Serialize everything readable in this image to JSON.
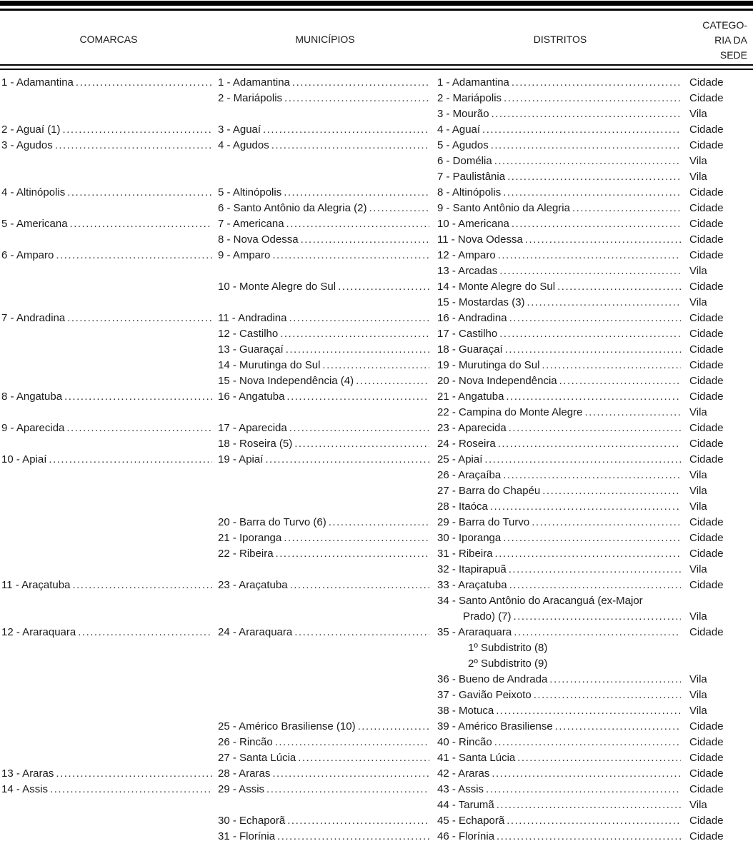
{
  "page": {
    "background_color": "#ffffff",
    "text_color": "#1a1a1a",
    "rule_color": "#000000"
  },
  "table": {
    "headers": {
      "comarcas": "COMARCAS",
      "municipios": "MUNICÍPIOS",
      "distritos": "DISTRITOS",
      "categoria_line1": "CATEGO-",
      "categoria_line2": "RIA DA",
      "categoria_line3": "SEDE"
    },
    "rows": [
      {
        "comarca": "1 - Adamantina",
        "municipio": "1 - Adamantina",
        "distrito": "1 - Adamantina",
        "categoria": "Cidade"
      },
      {
        "comarca": "",
        "municipio": "2 - Mariápolis",
        "distrito": "2 - Mariápolis",
        "categoria": "Cidade"
      },
      {
        "comarca": "",
        "municipio": "",
        "distrito": "3 - Mourão",
        "categoria": "Vila"
      },
      {
        "comarca": "2 - Aguaí (1)",
        "municipio": "3 - Aguaí",
        "distrito": "4 - Aguaí",
        "categoria": "Cidade"
      },
      {
        "comarca": "3 - Agudos",
        "municipio": "4 - Agudos",
        "distrito": "5 - Agudos",
        "categoria": "Cidade"
      },
      {
        "comarca": "",
        "municipio": "",
        "distrito": "6 - Domélia",
        "categoria": "Vila"
      },
      {
        "comarca": "",
        "municipio": "",
        "distrito": "7 - Paulistânia",
        "categoria": "Vila"
      },
      {
        "comarca": "4 - Altinópolis",
        "municipio": "5 - Altinópolis",
        "distrito": "8 - Altinópolis",
        "categoria": "Cidade"
      },
      {
        "comarca": "",
        "municipio": "6 - Santo Antônio da Alegria (2)",
        "distrito": "9 - Santo Antônio da Alegria",
        "categoria": "Cidade"
      },
      {
        "comarca": "5 - Americana",
        "municipio": "7 - Americana",
        "distrito": "10 - Americana",
        "categoria": "Cidade"
      },
      {
        "comarca": "",
        "municipio": "8 - Nova Odessa",
        "distrito": "11 - Nova Odessa",
        "categoria": "Cidade"
      },
      {
        "comarca": "6 - Amparo",
        "municipio": "9 - Amparo",
        "distrito": "12 - Amparo",
        "categoria": "Cidade"
      },
      {
        "comarca": "",
        "municipio": "",
        "distrito": "13 - Arcadas",
        "categoria": "Vila"
      },
      {
        "comarca": "",
        "municipio": "10 - Monte Alegre do Sul",
        "distrito": "14 - Monte Alegre do Sul",
        "categoria": "Cidade"
      },
      {
        "comarca": "",
        "municipio": "",
        "distrito": "15 - Mostardas (3)",
        "categoria": "Vila"
      },
      {
        "comarca": "7 - Andradina",
        "municipio": "11 - Andradina",
        "distrito": "16 - Andradina",
        "categoria": "Cidade"
      },
      {
        "comarca": "",
        "municipio": "12 - Castilho",
        "distrito": "17 - Castilho",
        "categoria": "Cidade"
      },
      {
        "comarca": "",
        "municipio": "13 - Guaraçaí",
        "distrito": "18 - Guaraçaí",
        "categoria": "Cidade"
      },
      {
        "comarca": "",
        "municipio": "14 - Murutinga do Sul",
        "distrito": "19 - Murutinga do Sul",
        "categoria": "Cidade"
      },
      {
        "comarca": "",
        "municipio": "15 - Nova Independência (4)",
        "distrito": "20 - Nova Independência",
        "categoria": "Cidade"
      },
      {
        "comarca": "8 - Angatuba",
        "municipio": "16 - Angatuba",
        "distrito": "21 - Angatuba",
        "categoria": "Cidade"
      },
      {
        "comarca": "",
        "municipio": "",
        "distrito": "22 - Campina do Monte Alegre",
        "categoria": "Vila"
      },
      {
        "comarca": "9 - Aparecida",
        "municipio": "17 - Aparecida",
        "distrito": "23 - Aparecida",
        "categoria": "Cidade"
      },
      {
        "comarca": "",
        "municipio": "18 - Roseira (5)",
        "distrito": "24 - Roseira",
        "categoria": "Cidade"
      },
      {
        "comarca": "10 - Apiaí",
        "municipio": "19 - Apiaí",
        "distrito": "25 - Apiaí",
        "categoria": "Cidade"
      },
      {
        "comarca": "",
        "municipio": "",
        "distrito": "26 - Araçaíba",
        "categoria": "Vila"
      },
      {
        "comarca": "",
        "municipio": "",
        "distrito": "27 - Barra do Chapéu",
        "categoria": "Vila"
      },
      {
        "comarca": "",
        "municipio": "",
        "distrito": "28 - Itaóca",
        "categoria": "Vila"
      },
      {
        "comarca": "",
        "municipio": "20 - Barra do Turvo (6)",
        "distrito": "29 - Barra do Turvo",
        "categoria": "Cidade"
      },
      {
        "comarca": "",
        "municipio": "21 - Iporanga",
        "distrito": "30 - Iporanga",
        "categoria": "Cidade"
      },
      {
        "comarca": "",
        "municipio": "22 - Ribeira",
        "distrito": "31 - Ribeira",
        "categoria": "Cidade"
      },
      {
        "comarca": "",
        "municipio": "",
        "distrito": "32 - Itapirapuã",
        "categoria": "Vila"
      },
      {
        "comarca": "11 - Araçatuba",
        "municipio": "23 - Araçatuba",
        "distrito": "33 - Araçatuba",
        "categoria": "Cidade"
      },
      {
        "comarca": "",
        "municipio": "",
        "distrito": "34 - Santo Antônio do Aracanguá (ex-Major",
        "categoria": "",
        "distrito_dots": false
      },
      {
        "comarca": "",
        "municipio": "",
        "distrito": "Prado) (7)",
        "categoria": "Vila",
        "distrito_indent": "hang"
      },
      {
        "comarca": "12 - Araraquara",
        "municipio": "24 - Araraquara",
        "distrito": "35 - Araraquara",
        "categoria": "Cidade"
      },
      {
        "comarca": "",
        "municipio": "",
        "distrito": "1º Subdistrito (8)",
        "categoria": "",
        "distrito_indent": "sub",
        "distrito_dots": false
      },
      {
        "comarca": "",
        "municipio": "",
        "distrito": "2º Subdistrito (9)",
        "categoria": "",
        "distrito_indent": "sub",
        "distrito_dots": false
      },
      {
        "comarca": "",
        "municipio": "",
        "distrito": "36 - Bueno de Andrada",
        "categoria": "Vila"
      },
      {
        "comarca": "",
        "municipio": "",
        "distrito": "37 - Gavião Peixoto",
        "categoria": "Vila"
      },
      {
        "comarca": "",
        "municipio": "",
        "distrito": "38 - Motuca",
        "categoria": "Vila"
      },
      {
        "comarca": "",
        "municipio": "25 - Américo Brasiliense (10)",
        "distrito": "39 - Américo Brasiliense",
        "categoria": "Cidade"
      },
      {
        "comarca": "",
        "municipio": "26 - Rincão",
        "distrito": "40 - Rincão",
        "categoria": "Cidade"
      },
      {
        "comarca": "",
        "municipio": "27 - Santa Lúcia",
        "distrito": "41 - Santa Lúcia",
        "categoria": "Cidade"
      },
      {
        "comarca": "13 - Araras",
        "municipio": "28 - Araras",
        "distrito": "42 - Araras",
        "categoria": "Cidade"
      },
      {
        "comarca": "14 - Assis",
        "municipio": "29 - Assis",
        "distrito": "43 - Assis",
        "categoria": "Cidade"
      },
      {
        "comarca": "",
        "municipio": "",
        "distrito": "44 - Tarumã",
        "categoria": "Vila"
      },
      {
        "comarca": "",
        "municipio": "30 - Echaporã",
        "distrito": "45 - Echaporã",
        "categoria": "Cidade"
      },
      {
        "comarca": "",
        "municipio": "31 - Florínia",
        "distrito": "46 - Florínia",
        "categoria": "Cidade"
      }
    ]
  }
}
